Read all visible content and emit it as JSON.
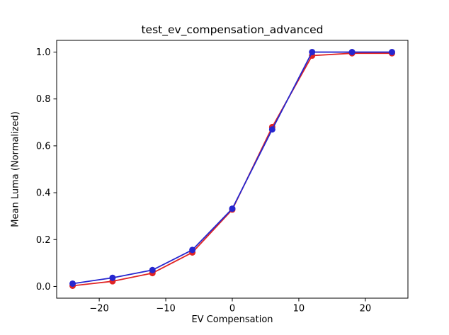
{
  "chart_data": {
    "type": "line",
    "title": "test_ev_compensation_advanced",
    "xlabel": "EV Compensation",
    "ylabel": "Mean Luma (Normalized)",
    "x": [
      -24,
      -18,
      -12,
      -6,
      0,
      6,
      12,
      18,
      24
    ],
    "series": [
      {
        "name": "red-series",
        "color": "#e02424",
        "values": [
          0.003,
          0.022,
          0.057,
          0.145,
          0.328,
          0.68,
          0.985,
          0.995,
          0.995
        ]
      },
      {
        "name": "blue-series",
        "color": "#2626cf",
        "values": [
          0.012,
          0.037,
          0.07,
          0.156,
          0.332,
          0.67,
          1.0,
          1.0,
          1.0
        ]
      }
    ],
    "xlim": [
      -26.4,
      26.4
    ],
    "ylim": [
      -0.05,
      1.05
    ],
    "xticks": [
      -20,
      -10,
      0,
      10,
      20
    ],
    "xtick_labels": [
      "−20",
      "−10",
      "0",
      "10",
      "20"
    ],
    "yticks": [
      0.0,
      0.2,
      0.4,
      0.6,
      0.8,
      1.0
    ],
    "ytick_labels": [
      "0.0",
      "0.2",
      "0.4",
      "0.6",
      "0.8",
      "1.0"
    ],
    "grid": false,
    "legend": null,
    "marker": "circle",
    "marker_size": 4.5,
    "line_width": 1.8,
    "axis_color": "#000000",
    "background": "#ffffff"
  }
}
